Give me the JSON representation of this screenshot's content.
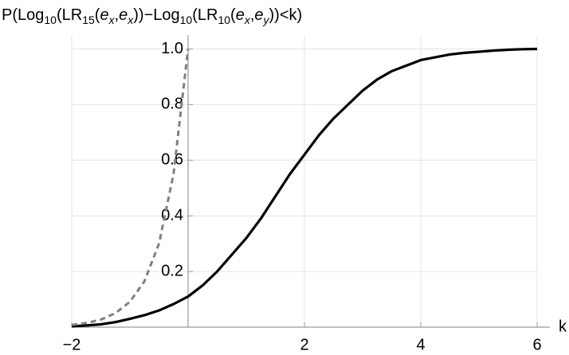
{
  "chart_data": {
    "type": "line",
    "y_label": [
      "P(Log",
      "10",
      "(LR",
      "15",
      "(",
      "e",
      "x",
      ",",
      "e",
      "x",
      "))−Log",
      "10",
      "(LR",
      "10",
      "(",
      "e",
      "x",
      ",",
      "e",
      "y",
      "))<k)"
    ],
    "x_label": "k",
    "x": [
      -2,
      -1.75,
      -1.5,
      -1.25,
      -1,
      -0.75,
      -0.5,
      -0.25,
      0,
      0.25,
      0.5,
      0.75,
      1,
      1.25,
      1.5,
      1.75,
      2,
      2.25,
      2.5,
      2.75,
      3,
      3.25,
      3.5,
      3.75,
      4,
      4.25,
      4.5,
      4.75,
      5,
      5.25,
      5.5,
      5.75,
      6
    ],
    "series": [
      {
        "color": "#000000",
        "dashed": false,
        "values": [
          0.003,
          0.006,
          0.01,
          0.018,
          0.03,
          0.043,
          0.06,
          0.083,
          0.11,
          0.15,
          0.2,
          0.26,
          0.32,
          0.39,
          0.47,
          0.55,
          0.62,
          0.69,
          0.75,
          0.8,
          0.85,
          0.89,
          0.92,
          0.94,
          0.96,
          0.97,
          0.98,
          0.986,
          0.99,
          0.994,
          0.997,
          0.999,
          1.0
        ]
      },
      {
        "color": "#808080",
        "dashed": true,
        "values": [
          0.008,
          0.015,
          0.027,
          0.05,
          0.091,
          0.165,
          0.3,
          0.55,
          1.0,
          null,
          null,
          null,
          null,
          null,
          null,
          null,
          null,
          null,
          null,
          null,
          null,
          null,
          null,
          null,
          null,
          null,
          null,
          null,
          null,
          null,
          null,
          null,
          null
        ]
      }
    ],
    "xlim": [
      -2,
      6
    ],
    "ylim": [
      0,
      1.05
    ],
    "xticks": [
      {
        "value": -2,
        "label": "−2"
      },
      2,
      4,
      6
    ],
    "yticks": [
      0.2,
      0.4,
      0.6,
      0.8,
      {
        "value": 1,
        "label": "1.0"
      }
    ],
    "grid": true
  }
}
